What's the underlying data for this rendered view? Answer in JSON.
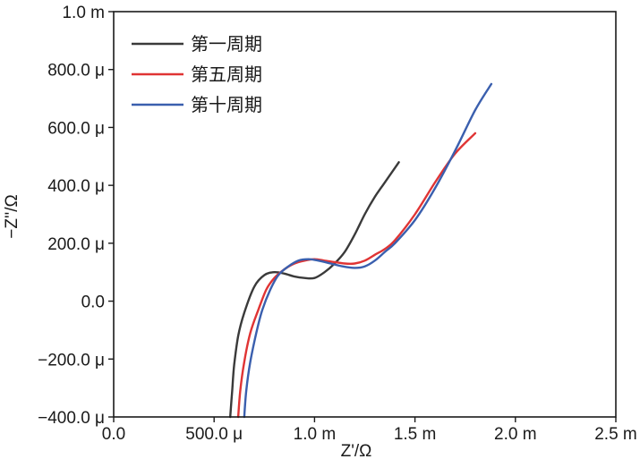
{
  "chart_data": {
    "type": "line",
    "title": "",
    "xlabel": "Z'/Ω",
    "ylabel": "−Z''/Ω",
    "xlim": [
      0,
      0.0025
    ],
    "ylim": [
      -0.0004,
      0.001
    ],
    "x_ticks": [
      0,
      0.0005,
      0.001,
      0.0015,
      0.002,
      0.0025
    ],
    "x_tick_labels": [
      "0.0",
      "500.0 μ",
      "1.0 m",
      "1.5 m",
      "2.0 m",
      "2.5 m"
    ],
    "y_ticks": [
      -0.0004,
      -0.0002,
      0,
      0.0002,
      0.0004,
      0.0006,
      0.0008,
      0.001
    ],
    "y_tick_labels": [
      "−400.0 μ",
      "−200.0 μ",
      "0.0",
      "200.0 μ",
      "400.0 μ",
      "600.0 μ",
      "800.0 μ",
      "1.0 m"
    ],
    "grid": false,
    "legend_position": "top-left",
    "series": [
      {
        "name": "第一周期",
        "color": "#3a3a3a",
        "x": [
          0.00058,
          0.00059,
          0.0006,
          0.00062,
          0.00065,
          0.0007,
          0.00075,
          0.0008,
          0.00085,
          0.0009,
          0.00095,
          0.001,
          0.00105,
          0.0011,
          0.00115,
          0.0012,
          0.00125,
          0.0013,
          0.00135,
          0.0014,
          0.00142
        ],
        "y": [
          -0.0004,
          -0.00031,
          -0.00022,
          -0.00012,
          -4e-05,
          5e-05,
          9e-05,
          0.0001,
          9.5e-05,
          8.5e-05,
          8e-05,
          8e-05,
          0.0001,
          0.00013,
          0.00017,
          0.00023,
          0.0003,
          0.00036,
          0.00041,
          0.00046,
          0.00048
        ]
      },
      {
        "name": "第五周期",
        "color": "#e03434",
        "x": [
          0.00062,
          0.00063,
          0.00065,
          0.00068,
          0.00072,
          0.00076,
          0.0008,
          0.00085,
          0.0009,
          0.00095,
          0.001,
          0.00105,
          0.0011,
          0.00115,
          0.0012,
          0.00125,
          0.0013,
          0.00135,
          0.0014,
          0.0015,
          0.0016,
          0.0017,
          0.0018
        ],
        "y": [
          -0.0004,
          -0.00031,
          -0.00021,
          -0.00011,
          -3e-05,
          4e-05,
          8e-05,
          0.00011,
          0.00013,
          0.00014,
          0.000145,
          0.00014,
          0.000135,
          0.00013,
          0.00013,
          0.00014,
          0.00016,
          0.00018,
          0.00021,
          0.0003,
          0.00041,
          0.00051,
          0.00058
        ]
      },
      {
        "name": "第十周期",
        "color": "#3a5fae",
        "x": [
          0.00065,
          0.00066,
          0.00068,
          0.00071,
          0.00074,
          0.00078,
          0.00082,
          0.00087,
          0.00092,
          0.00097,
          0.00102,
          0.00108,
          0.00114,
          0.0012,
          0.00125,
          0.0013,
          0.00135,
          0.0014,
          0.0015,
          0.0016,
          0.0017,
          0.0018,
          0.00188
        ],
        "y": [
          -0.0004,
          -0.00031,
          -0.00021,
          -0.00011,
          -3e-05,
          4e-05,
          9e-05,
          0.00012,
          0.00014,
          0.000145,
          0.00014,
          0.00013,
          0.00012,
          0.000115,
          0.00012,
          0.00014,
          0.00017,
          0.0002,
          0.00028,
          0.00039,
          0.00052,
          0.00066,
          0.00075
        ]
      }
    ]
  }
}
